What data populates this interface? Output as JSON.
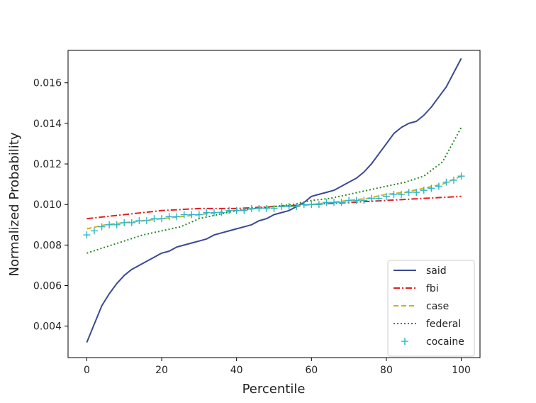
{
  "chart_data": {
    "type": "line",
    "title": "",
    "xlabel": "Percentile",
    "ylabel": "Normalized Probability",
    "xlim": [
      -5,
      105
    ],
    "ylim": [
      0.00245,
      0.0176
    ],
    "xticks": [
      0,
      20,
      40,
      60,
      80,
      100
    ],
    "xtick_labels": [
      "0",
      "20",
      "40",
      "60",
      "80",
      "100"
    ],
    "yticks": [
      0.004,
      0.006,
      0.008,
      0.01,
      0.012,
      0.014,
      0.016
    ],
    "ytick_labels": [
      "0.004",
      "0.006",
      "0.008",
      "0.010",
      "0.012",
      "0.014",
      "0.016"
    ],
    "grid": false,
    "legend_position": "lower-right",
    "series": [
      {
        "name": "said",
        "style": "solid",
        "color": "#3b4994",
        "x": [
          0,
          2,
          4,
          6,
          8,
          10,
          12,
          14,
          16,
          18,
          20,
          22,
          24,
          26,
          28,
          30,
          32,
          34,
          36,
          38,
          40,
          42,
          44,
          46,
          48,
          50,
          52,
          54,
          56,
          58,
          60,
          62,
          64,
          66,
          68,
          70,
          72,
          74,
          76,
          78,
          80,
          82,
          84,
          86,
          88,
          90,
          92,
          94,
          96,
          98,
          100
        ],
        "y": [
          0.0032,
          0.0041,
          0.005,
          0.0056,
          0.0061,
          0.0065,
          0.0068,
          0.007,
          0.0072,
          0.0074,
          0.0076,
          0.0077,
          0.0079,
          0.008,
          0.0081,
          0.0082,
          0.0083,
          0.0085,
          0.0086,
          0.0087,
          0.0088,
          0.0089,
          0.009,
          0.0092,
          0.0093,
          0.0095,
          0.0096,
          0.0097,
          0.0099,
          0.0101,
          0.0104,
          0.0105,
          0.0106,
          0.0107,
          0.0109,
          0.0111,
          0.0113,
          0.0116,
          0.012,
          0.0125,
          0.013,
          0.0135,
          0.0138,
          0.014,
          0.0141,
          0.0144,
          0.0148,
          0.0153,
          0.0158,
          0.0165,
          0.0172
        ]
      },
      {
        "name": "fbi",
        "style": "dashdot",
        "color": "#e02020",
        "x": [
          0,
          10,
          20,
          30,
          40,
          50,
          60,
          70,
          80,
          90,
          100
        ],
        "y": [
          0.0093,
          0.0095,
          0.0097,
          0.0098,
          0.0098,
          0.0099,
          0.01,
          0.0101,
          0.0102,
          0.0103,
          0.0104
        ]
      },
      {
        "name": "case",
        "style": "dashed",
        "color": "#c8b41e",
        "x": [
          0,
          5,
          10,
          15,
          20,
          25,
          30,
          35,
          40,
          45,
          50,
          55,
          60,
          65,
          70,
          75,
          80,
          85,
          90,
          95,
          100
        ],
        "y": [
          0.0088,
          0.009,
          0.0091,
          0.0092,
          0.0093,
          0.0094,
          0.0095,
          0.0096,
          0.0097,
          0.0098,
          0.0099,
          0.0099,
          0.01,
          0.0101,
          0.0102,
          0.0103,
          0.0105,
          0.0106,
          0.0108,
          0.011,
          0.0114
        ]
      },
      {
        "name": "federal",
        "style": "dotted",
        "color": "#228b22",
        "x": [
          0,
          5,
          10,
          15,
          20,
          25,
          30,
          35,
          40,
          45,
          50,
          55,
          60,
          65,
          70,
          75,
          80,
          85,
          90,
          95,
          100
        ],
        "y": [
          0.0076,
          0.0079,
          0.0082,
          0.0085,
          0.0087,
          0.0089,
          0.0093,
          0.0095,
          0.0097,
          0.0098,
          0.0099,
          0.01,
          0.0102,
          0.0103,
          0.0105,
          0.0107,
          0.0109,
          0.0111,
          0.0114,
          0.0121,
          0.0138
        ]
      },
      {
        "name": "cocaine",
        "style": "marker-plus",
        "color": "#2cb5c8",
        "x": [
          0,
          2,
          4,
          6,
          8,
          10,
          12,
          14,
          16,
          18,
          20,
          22,
          24,
          26,
          28,
          30,
          32,
          34,
          36,
          38,
          40,
          42,
          44,
          46,
          48,
          50,
          52,
          54,
          56,
          58,
          60,
          62,
          64,
          66,
          68,
          70,
          72,
          74,
          76,
          78,
          80,
          82,
          84,
          86,
          88,
          90,
          92,
          94,
          96,
          98,
          100
        ],
        "y": [
          0.0085,
          0.0087,
          0.0089,
          0.009,
          0.009,
          0.0091,
          0.0091,
          0.0092,
          0.0092,
          0.0093,
          0.0093,
          0.0094,
          0.0094,
          0.0095,
          0.0095,
          0.0095,
          0.0096,
          0.0096,
          0.0096,
          0.0097,
          0.0097,
          0.0097,
          0.0098,
          0.0098,
          0.0098,
          0.0098,
          0.0099,
          0.0099,
          0.0099,
          0.01,
          0.01,
          0.01,
          0.0101,
          0.0101,
          0.0101,
          0.0102,
          0.0102,
          0.0102,
          0.0103,
          0.0103,
          0.0104,
          0.0105,
          0.0105,
          0.0106,
          0.0106,
          0.0107,
          0.0108,
          0.0109,
          0.0111,
          0.0112,
          0.0114
        ]
      }
    ]
  }
}
